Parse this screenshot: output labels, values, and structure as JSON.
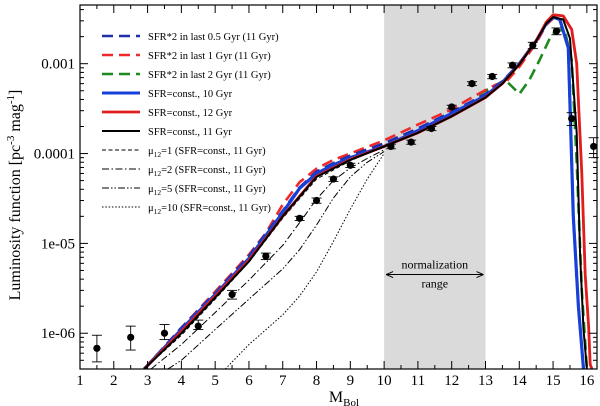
{
  "chart_data": {
    "type": "line",
    "xlabel": "M",
    "xlabel_sub": "Bol",
    "ylabel": "Luminosity function [pc",
    "ylabel_sup1": "-3",
    "ylabel_mid": " mag",
    "ylabel_sup2": "-1",
    "ylabel_end": "]",
    "xlim": [
      1,
      16.3
    ],
    "ylim": [
      4e-07,
      0.0045
    ],
    "y_scale": "log",
    "x_ticks": [
      1,
      2,
      3,
      4,
      5,
      6,
      7,
      8,
      9,
      10,
      11,
      12,
      13,
      14,
      15,
      16
    ],
    "y_ticks": [
      {
        "value": 1e-06,
        "label": "1e-06"
      },
      {
        "value": 1e-05,
        "label": "1e-05"
      },
      {
        "value": 0.0001,
        "label": "0.0001"
      },
      {
        "value": 0.001,
        "label": "0.001"
      }
    ],
    "grid": false,
    "legend_position": "top-left",
    "annotation": {
      "shaded_range": [
        10,
        13
      ],
      "text_line1": "normalization",
      "text_line2": "range",
      "arrow_y": 4.5e-06
    },
    "series": [
      {
        "label_main": "SFR*2 in last 0.5 Gyr (11 Gyr)",
        "color": "#1f2fa8",
        "dash": "11,6",
        "width": 2.6,
        "x": [
          2.9,
          4,
          5,
          6,
          7,
          7.5,
          8,
          8.5,
          9,
          10,
          11,
          12,
          13,
          13.5,
          14,
          14.5,
          14.8,
          15,
          15.2,
          15.45,
          15.6,
          15.75,
          15.9
        ],
        "y": [
          4e-07,
          1.15e-06,
          2.8e-06,
          7.2e-06,
          2.3e-05,
          4.2e-05,
          6.3e-05,
          7.8e-05,
          9.5e-05,
          0.00013,
          0.00019,
          0.00029,
          0.00046,
          0.00064,
          0.001,
          0.0018,
          0.0028,
          0.0033,
          0.0031,
          0.0015,
          2e-05,
          2e-06,
          4e-07
        ]
      },
      {
        "label_main": "SFR*2 in last 1 Gyr (11 Gyr)",
        "color": "#ee2a2a",
        "dash": "11,6",
        "width": 2.6,
        "x": [
          2.9,
          4,
          5,
          6,
          6.5,
          7,
          7.5,
          8,
          8.5,
          9,
          10,
          11,
          12,
          12.5,
          13,
          13.3,
          13.6,
          14,
          14.5,
          14.8,
          15,
          15.2,
          15.45,
          15.6,
          15.75,
          15.9
        ],
        "y": [
          4e-07,
          1.15e-06,
          2.9e-06,
          7.5e-06,
          1.3e-05,
          2.7e-05,
          4.8e-05,
          6.8e-05,
          8.5e-05,
          0.0001,
          0.00014,
          0.00021,
          0.00031,
          0.0004,
          0.00051,
          0.00058,
          0.00062,
          0.00092,
          0.0017,
          0.0027,
          0.0032,
          0.0031,
          0.0015,
          2e-05,
          2e-06,
          4e-07
        ]
      },
      {
        "label_main": "SFR*2 in last 2 Gyr (11 Gyr)",
        "color": "#1e8a1e",
        "dash": "11,6",
        "width": 2.6,
        "x": [
          12.8,
          13,
          13.3,
          13.6,
          13.8,
          14,
          14.3,
          14.6,
          14.9,
          15.1,
          15.35,
          15.55,
          15.7,
          15.85,
          16
        ],
        "y": [
          0.00045,
          0.0005,
          0.00058,
          0.00065,
          0.00055,
          0.00046,
          0.00066,
          0.0011,
          0.0019,
          0.0024,
          0.0023,
          0.0011,
          8e-05,
          3e-06,
          4e-07
        ]
      },
      {
        "label_main": "SFR=const., 10 Gyr",
        "color": "#1740d8",
        "dash": "",
        "width": 3.2,
        "x": [
          2.9,
          4,
          5,
          6,
          7,
          7.5,
          8,
          8.5,
          9,
          10,
          11,
          12,
          13,
          13.5,
          14,
          14.5,
          14.8,
          15,
          15.2,
          15.45,
          15.6,
          15.75,
          15.9
        ],
        "y": [
          4e-07,
          1.1e-06,
          2.7e-06,
          6.8e-06,
          2.2e-05,
          4.1e-05,
          6e-05,
          7.5e-05,
          9e-05,
          0.00012,
          0.00018,
          0.00028,
          0.00044,
          0.00062,
          0.001,
          0.0018,
          0.0028,
          0.0033,
          0.0031,
          0.0015,
          2e-05,
          2e-06,
          4e-07
        ]
      },
      {
        "label_main": "SFR=const., 12 Gyr",
        "color": "#e11c1c",
        "dash": "",
        "width": 2.8,
        "x": [
          2.9,
          4,
          5,
          6,
          7,
          8,
          9,
          10,
          11,
          12,
          13,
          13.5,
          14,
          14.5,
          14.8,
          15,
          15.3,
          15.55,
          15.7,
          15.85,
          15.95,
          16.05,
          16.1,
          16.15
        ],
        "y": [
          4e-07,
          1.05e-06,
          2.6e-06,
          6.5e-06,
          2e-05,
          5.6e-05,
          8.6e-05,
          0.00012,
          0.00017,
          0.00026,
          0.00042,
          0.0006,
          0.00098,
          0.0018,
          0.0029,
          0.0035,
          0.0034,
          0.0024,
          0.001,
          6e-05,
          4.5e-06,
          1.2e-06,
          4.5e-07,
          4e-07
        ]
      },
      {
        "label_main": "SFR=const., 11 Gyr",
        "color": "#000000",
        "dash": "",
        "width": 2.0,
        "x": [
          2.9,
          4,
          5,
          6,
          7,
          8,
          9,
          10,
          11,
          12,
          13,
          13.5,
          14,
          14.5,
          14.8,
          15,
          15.3,
          15.5,
          15.7,
          15.8,
          15.9,
          16.0
        ],
        "y": [
          4e-07,
          1e-06,
          2.5e-06,
          6.3e-06,
          2e-05,
          5.5e-05,
          8.5e-05,
          0.00012,
          0.00017,
          0.00026,
          0.00042,
          0.0006,
          0.00098,
          0.0018,
          0.0028,
          0.0033,
          0.0031,
          0.0019,
          0.00017,
          7.5e-06,
          1.1e-06,
          4e-07
        ]
      },
      {
        "label_main": "=1 (SFR=const., 11 Gyr)",
        "label_mu": "μ",
        "label_sub": "12",
        "color": "#000000",
        "dash": "4,2.5",
        "width": 1.0,
        "x": [
          2.9,
          4,
          5,
          6,
          7,
          8,
          9,
          10
        ],
        "y": [
          4e-07,
          9.5e-07,
          2.4e-06,
          6.2e-06,
          1.9e-05,
          5.2e-05,
          8.3e-05,
          0.00012
        ]
      },
      {
        "label_main": "=2 (SFR=const., 11 Gyr)",
        "label_mu": "μ",
        "label_sub": "12",
        "color": "#000000",
        "dash": "7,2.5,1.5,2.5",
        "width": 1.0,
        "x": [
          3.1,
          4,
          5,
          6,
          7,
          7.5,
          8,
          8.5,
          9,
          9.5,
          10
        ],
        "y": [
          4e-07,
          7.5e-07,
          1.7e-06,
          3.9e-06,
          9.5e-06,
          1.7e-05,
          3.1e-05,
          5e-05,
          6.9e-05,
          8.8e-05,
          0.00011
        ]
      },
      {
        "label_main": "=5 (SFR=const., 11 Gyr)",
        "label_mu": "μ",
        "label_sub": "12",
        "color": "#000000",
        "dash": "7,2,1.5,2,1.5,2",
        "width": 1.0,
        "x": [
          3.6,
          4,
          5,
          6,
          7,
          7.5,
          8,
          8.5,
          9,
          9.5,
          10
        ],
        "y": [
          4e-07,
          5e-07,
          1.1e-06,
          2.4e-06,
          5.2e-06,
          8.5e-06,
          1.6e-05,
          3.2e-05,
          5.5e-05,
          8e-05,
          0.000105
        ]
      },
      {
        "label_main": "=10 (SFR=const., 11 Gyr)",
        "label_mu": "μ",
        "label_sub": "12",
        "color": "#000000",
        "dash": "1.5,1.8",
        "width": 1.0,
        "x": [
          5.3,
          6,
          7,
          7.5,
          8,
          8.5,
          9,
          9.5,
          10
        ],
        "y": [
          4e-07,
          7.5e-07,
          1.6e-06,
          2.6e-06,
          4.8e-06,
          1.05e-05,
          2.4e-05,
          5.2e-05,
          0.0001
        ]
      }
    ],
    "observed": {
      "points": [
        {
          "x": 1.5,
          "y": 6.8e-07,
          "lo": 4.8e-07,
          "hi": 9.5e-07
        },
        {
          "x": 2.5,
          "y": 9e-07,
          "lo": 6.5e-07,
          "hi": 1.2e-06
        },
        {
          "x": 3.5,
          "y": 1e-06,
          "lo": 8.5e-07,
          "hi": 1.25e-06
        },
        {
          "x": 4.5,
          "y": 1.2e-06,
          "lo": 1.1e-06,
          "hi": 1.4e-06
        },
        {
          "x": 5.5,
          "y": 2.7e-06,
          "lo": 2.4e-06,
          "hi": 3e-06
        },
        {
          "x": 6.5,
          "y": 7.2e-06,
          "lo": 6.6e-06,
          "hi": 7.8e-06
        },
        {
          "x": 7.5,
          "y": 1.9e-05,
          "lo": 1.8e-05,
          "hi": 2e-05
        },
        {
          "x": 8.0,
          "y": 3e-05,
          "lo": 2.8e-05,
          "hi": 3.2e-05
        },
        {
          "x": 8.5,
          "y": 5.2e-05,
          "lo": 4.9e-05,
          "hi": 5.5e-05
        },
        {
          "x": 9.0,
          "y": 7.4e-05,
          "lo": 7e-05,
          "hi": 7.8e-05
        },
        {
          "x": 10.2,
          "y": 0.00012,
          "lo": 0.000113,
          "hi": 0.000127
        },
        {
          "x": 10.8,
          "y": 0.000134,
          "lo": 0.000127,
          "hi": 0.000141
        },
        {
          "x": 11.4,
          "y": 0.00019,
          "lo": 0.00018,
          "hi": 0.0002
        },
        {
          "x": 12.0,
          "y": 0.00033,
          "lo": 0.000315,
          "hi": 0.000345
        },
        {
          "x": 12.6,
          "y": 0.0006,
          "lo": 0.00057,
          "hi": 0.00063
        },
        {
          "x": 13.2,
          "y": 0.00072,
          "lo": 0.00068,
          "hi": 0.00076
        },
        {
          "x": 13.8,
          "y": 0.00096,
          "lo": 0.0009,
          "hi": 0.00102
        },
        {
          "x": 14.4,
          "y": 0.0016,
          "lo": 0.00147,
          "hi": 0.00173
        },
        {
          "x": 15.1,
          "y": 0.0023,
          "lo": 0.0021,
          "hi": 0.0025
        },
        {
          "x": 15.55,
          "y": 0.000245,
          "lo": 0.000205,
          "hi": 0.000285
        },
        {
          "x": 16.2,
          "y": 0.00012,
          "lo": 9e-05,
          "hi": 0.00015
        }
      ]
    }
  }
}
